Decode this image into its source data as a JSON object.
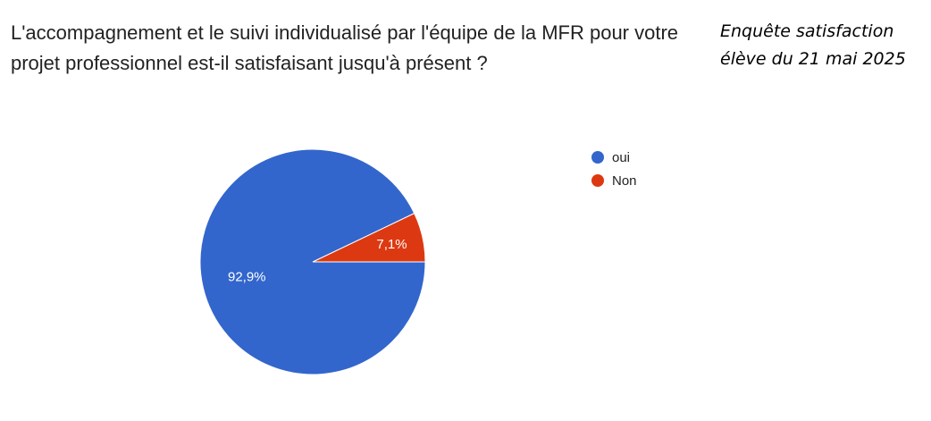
{
  "header": {
    "question": "L'accompagnement et le suivi individualisé par l'équipe de la MFR pour votre projet professionnel est-il satisfaisant jusqu'à présent ?",
    "note_line1": "Enquête satisfaction",
    "note_line2": "élève du 21 mai 2025"
  },
  "chart_data": {
    "type": "pie",
    "title": "",
    "categories": [
      "oui",
      "Non"
    ],
    "values": [
      92.9,
      7.1
    ],
    "labels": [
      "92,9%",
      "7,1%"
    ],
    "colors": [
      "#3366cc",
      "#dc3912"
    ],
    "legend": "right",
    "grid": false
  }
}
